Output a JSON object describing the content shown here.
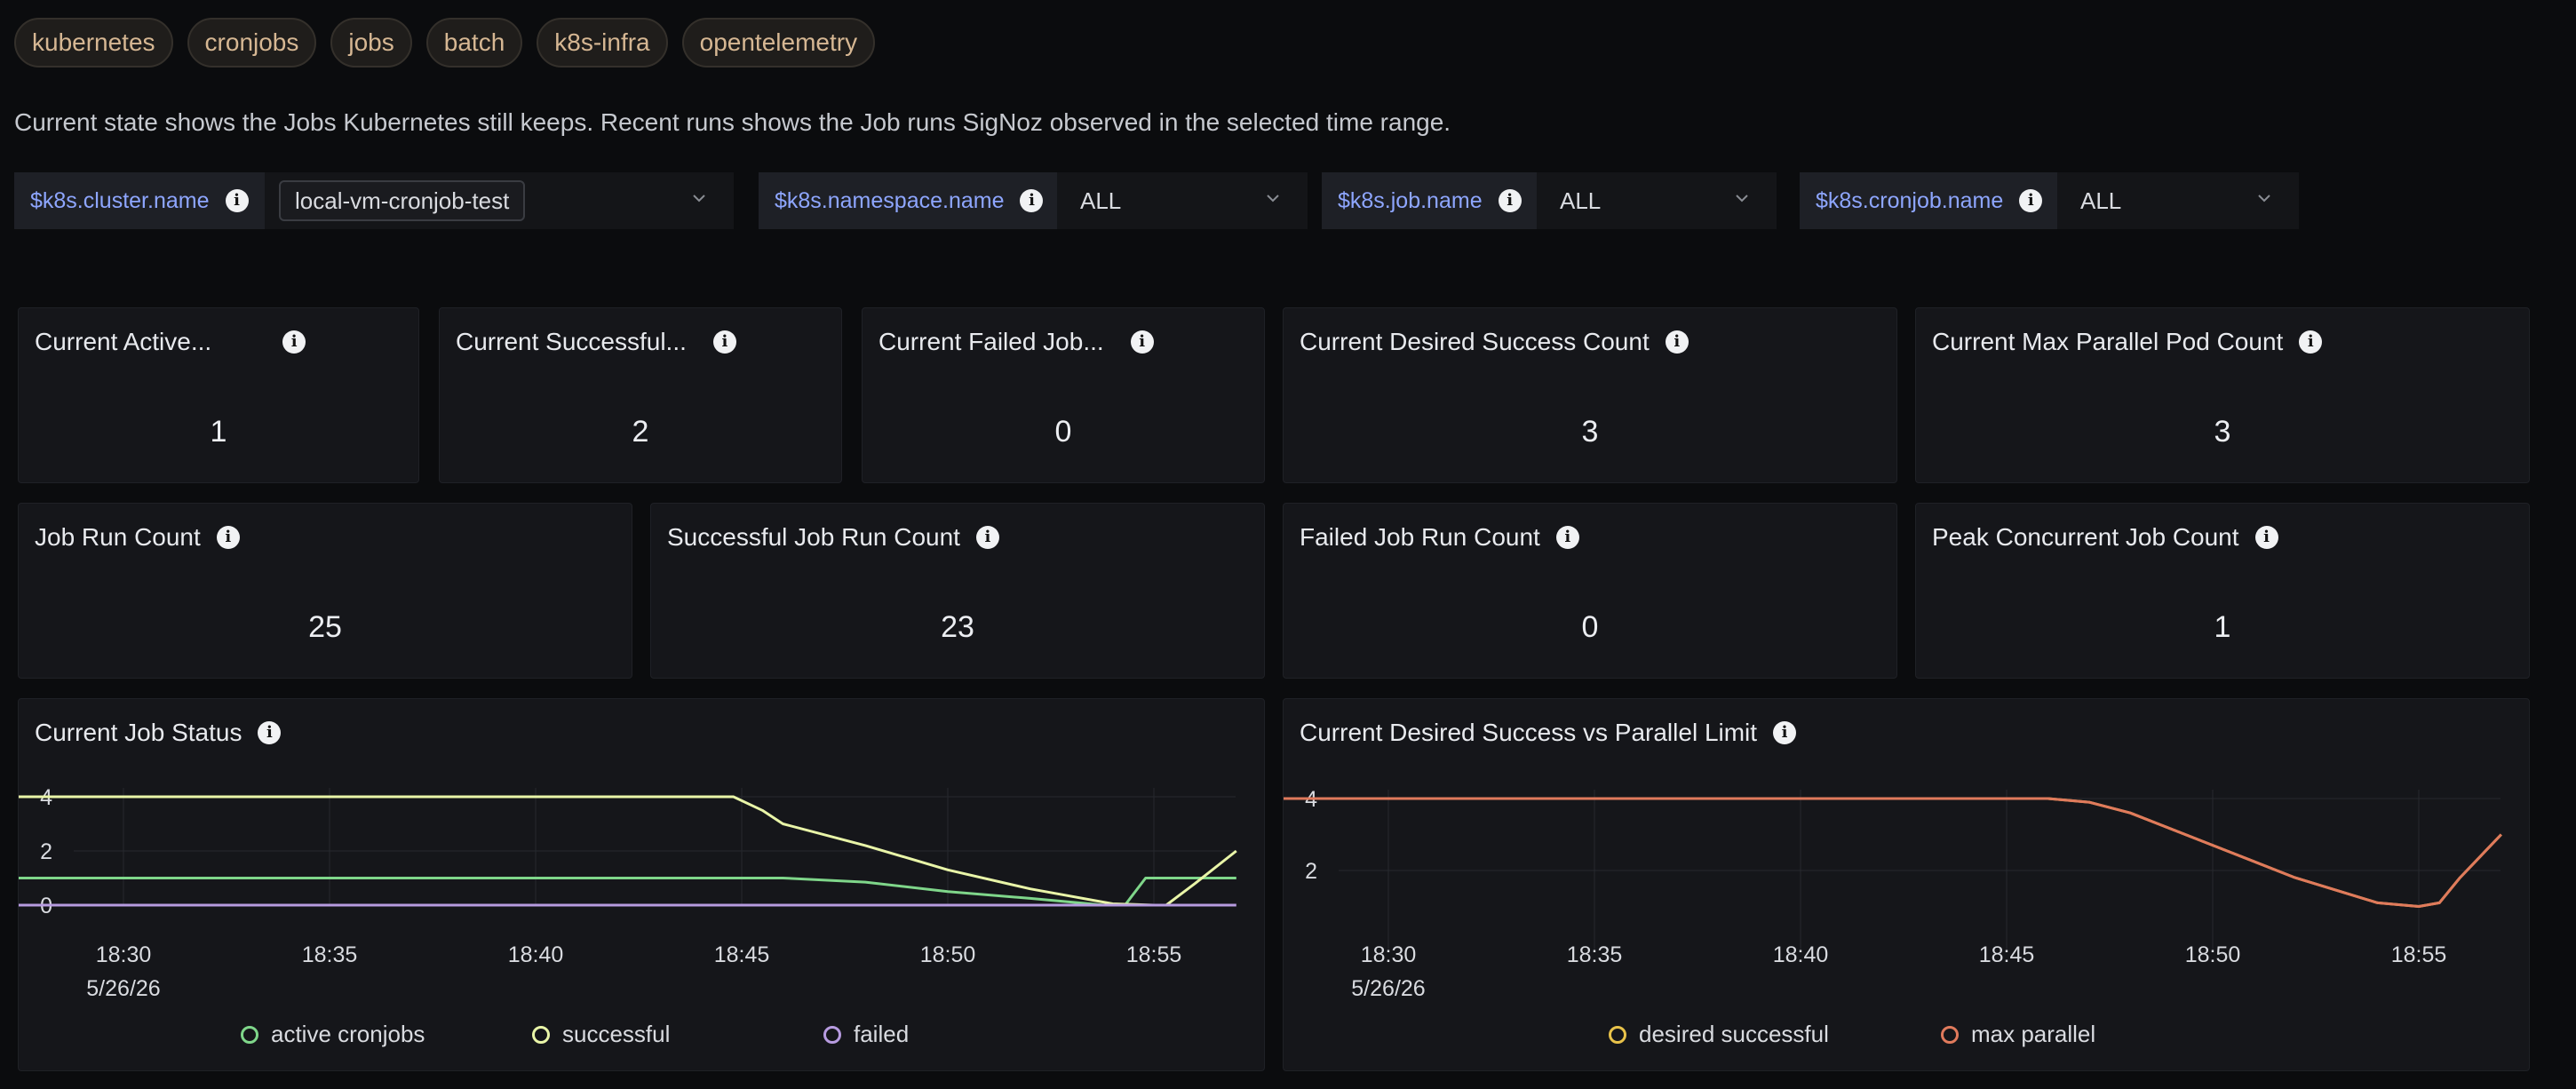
{
  "tags": [
    "kubernetes",
    "cronjobs",
    "jobs",
    "batch",
    "k8s-infra",
    "opentelemetry"
  ],
  "description": "Current state shows the Jobs Kubernetes still keeps. Recent runs shows the Job runs SigNoz observed in the selected time range.",
  "variables": [
    {
      "label": "$k8s.cluster.name",
      "value": "local-vm-cronjob-test"
    },
    {
      "label": "$k8s.namespace.name",
      "value": "ALL"
    },
    {
      "label": "$k8s.job.name",
      "value": "ALL"
    },
    {
      "label": "$k8s.cronjob.name",
      "value": "ALL"
    }
  ],
  "stats_row1": [
    {
      "title": "Current Active...",
      "value": "1"
    },
    {
      "title": "Current Successful...",
      "value": "2"
    },
    {
      "title": "Current Failed Job...",
      "value": "0"
    },
    {
      "title": "Current Desired Success Count",
      "value": "3"
    },
    {
      "title": "Current Max Parallel Pod Count",
      "value": "3"
    }
  ],
  "stats_row2": [
    {
      "title": "Job Run Count",
      "value": "25"
    },
    {
      "title": "Successful Job Run Count",
      "value": "23"
    },
    {
      "title": "Failed Job Run Count",
      "value": "0"
    },
    {
      "title": "Peak Concurrent Job Count",
      "value": "1"
    }
  ],
  "colors": {
    "active": "#7fd68a",
    "successful": "#e9f5a8",
    "failed": "#b79be0",
    "desired": "#e8c24a",
    "max_parallel": "#e07a5c"
  },
  "chart_data": [
    {
      "type": "line",
      "title": "Current Job Status",
      "x_ticks": [
        "18:30",
        "18:35",
        "18:40",
        "18:45",
        "18:50",
        "18:55"
      ],
      "x_sublabel": "5/26/26",
      "x_range_minutes": [
        18.3,
        46.0
      ],
      "ylim": [
        0,
        4
      ],
      "y_ticks": [
        0,
        2,
        4
      ],
      "series": [
        {
          "name": "active cronjobs",
          "color": "#7fd68a",
          "x": [
            18.3,
            45.5,
            46.0,
            50,
            52,
            54.0,
            55.0,
            56.0,
            57.0
          ],
          "y": [
            1,
            1,
            1,
            1,
            0.6,
            0.25,
            0,
            0,
            0
          ],
          "points": [
            [
              18.3,
              1
            ],
            [
              44,
              1
            ],
            [
              46,
              1
            ],
            [
              48,
              0.85
            ],
            [
              50,
              0.5
            ],
            [
              52,
              0.25
            ],
            [
              53.8,
              0
            ],
            [
              54.3,
              0
            ],
            [
              54.8,
              1
            ],
            [
              57.0,
              1
            ]
          ]
        },
        {
          "name": "successful",
          "color": "#e9f5a8",
          "points": [
            [
              18.3,
              4
            ],
            [
              44.8,
              4
            ],
            [
              45.5,
              3.5
            ],
            [
              46,
              3
            ],
            [
              48,
              2.2
            ],
            [
              50,
              1.3
            ],
            [
              52,
              0.6
            ],
            [
              54,
              0.05
            ],
            [
              55,
              0
            ],
            [
              55.3,
              0
            ],
            [
              56,
              0.8
            ],
            [
              57.0,
              2
            ]
          ]
        },
        {
          "name": "failed",
          "color": "#b79be0",
          "points": [
            [
              18.3,
              0
            ],
            [
              57.0,
              0
            ]
          ]
        }
      ]
    },
    {
      "type": "line",
      "title": "Current Desired Success vs Parallel Limit",
      "x_ticks": [
        "18:30",
        "18:35",
        "18:40",
        "18:45",
        "18:50",
        "18:55"
      ],
      "x_sublabel": "5/26/26",
      "ylim": [
        0,
        4
      ],
      "y_ticks": [
        2,
        4
      ],
      "series": [
        {
          "name": "desired successful",
          "color": "#e8c24a",
          "points": [
            [
              18.3,
              4
            ],
            [
              46,
              4
            ],
            [
              47,
              3.9
            ],
            [
              48,
              3.6
            ],
            [
              50,
              2.7
            ],
            [
              52,
              1.8
            ],
            [
              54,
              1.1
            ],
            [
              55,
              1.0
            ],
            [
              55.5,
              1.1
            ],
            [
              56,
              1.8
            ],
            [
              57.0,
              3
            ]
          ]
        },
        {
          "name": "max parallel",
          "color": "#e07a5c",
          "points": [
            [
              18.3,
              4
            ],
            [
              46,
              4
            ],
            [
              47,
              3.9
            ],
            [
              48,
              3.6
            ],
            [
              50,
              2.7
            ],
            [
              52,
              1.8
            ],
            [
              54,
              1.1
            ],
            [
              55,
              1.0
            ],
            [
              55.5,
              1.1
            ],
            [
              56,
              1.8
            ],
            [
              57.0,
              3
            ]
          ]
        }
      ]
    }
  ]
}
